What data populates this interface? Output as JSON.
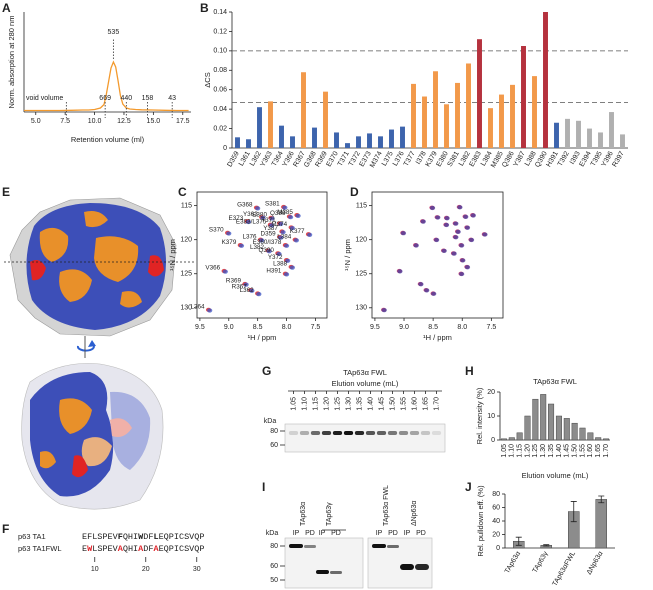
{
  "panel_labels": [
    "A",
    "B",
    "C",
    "D",
    "E",
    "F",
    "G",
    "H",
    "I",
    "J"
  ],
  "chart_data": [
    {
      "type": "line",
      "xlabel": "Retention volume (ml)",
      "ylabel": "Norm. absorption at 280 nm",
      "color": "#f39a2e",
      "x": [
        4,
        5,
        6,
        7,
        8,
        9,
        9.5,
        10,
        10.5,
        10.8,
        11.0,
        11.2,
        11.4,
        11.6,
        11.8,
        12.0,
        12.2,
        12.4,
        12.7,
        13,
        13.5,
        14,
        15,
        16,
        17,
        18
      ],
      "values": [
        0.03,
        0.03,
        0.03,
        0.03,
        0.035,
        0.04,
        0.04,
        0.05,
        0.08,
        0.15,
        0.35,
        0.62,
        0.88,
        1.0,
        0.9,
        0.62,
        0.33,
        0.16,
        0.08,
        0.06,
        0.05,
        0.045,
        0.04,
        0.035,
        0.03,
        0.03
      ],
      "xlim": [
        4,
        18.2
      ],
      "ylim": [
        0,
        2
      ],
      "xticks": [
        {
          "value": 5,
          "label": "5.0"
        },
        7.5,
        {
          "value": 10,
          "label": "10.0"
        },
        12.5,
        {
          "value": 15,
          "label": "15.0"
        },
        17.5
      ],
      "peak": {
        "label": "535",
        "x": 11.6
      },
      "markers": [
        {
          "label": "void volume",
          "x": 7.6
        },
        {
          "label": "669",
          "x": 10.9
        },
        {
          "label": "440",
          "x": 12.7
        },
        {
          "label": "158",
          "x": 14.5
        },
        {
          "label": "43",
          "x": 16.6
        }
      ]
    },
    {
      "type": "bar",
      "ylabel": "ΔCS",
      "categories": [
        "D359",
        "L361",
        "L362",
        "Y363",
        "T364",
        "Y366",
        "R367",
        "G368",
        "R369",
        "E370",
        "T371",
        "T372",
        "E373",
        "M374",
        "L375",
        "L376",
        "T377",
        "I378",
        "K379",
        "E380",
        "S381",
        "L382",
        "E383",
        "L384",
        "M385",
        "Q386",
        "Y387",
        "L388",
        "Q390",
        "H391",
        "T392",
        "I393",
        "E394",
        "T395",
        "Y396",
        "R397"
      ],
      "values": [
        0.011,
        0.009,
        0.042,
        0.048,
        0.023,
        0.012,
        0.078,
        0.021,
        0.058,
        0.016,
        0.005,
        0.012,
        0.015,
        0.012,
        0.019,
        0.022,
        0.066,
        0.053,
        0.079,
        0.045,
        0.067,
        0.087,
        0.112,
        0.041,
        0.055,
        0.065,
        0.105,
        0.074,
        0.14,
        0.026,
        0.03,
        0.028,
        0.02,
        0.016,
        0.037,
        0.014
      ],
      "colors": [
        "#3d64ad",
        "#3d64ad",
        "#3d64ad",
        "#f2994a",
        "#3d64ad",
        "#3d64ad",
        "#f2994a",
        "#3d64ad",
        "#f2994a",
        "#3d64ad",
        "#3d64ad",
        "#3d64ad",
        "#3d64ad",
        "#3d64ad",
        "#3d64ad",
        "#3d64ad",
        "#f2994a",
        "#f2994a",
        "#f2994a",
        "#f2994a",
        "#f2994a",
        "#f2994a",
        "#b5323e",
        "#f2994a",
        "#f2994a",
        "#f2994a",
        "#b5323e",
        "#f2994a",
        "#b5323e",
        "#3d64ad",
        "#b0b0b0",
        "#b0b0b0",
        "#b0b0b0",
        "#b0b0b0",
        "#b0b0b0",
        "#b0b0b0"
      ],
      "ylim": [
        0,
        0.14
      ],
      "yticks": [
        0,
        0.02,
        0.04,
        0.06,
        0.08,
        {
          "value": 0.1,
          "label": "0.10"
        },
        0.12,
        0.14
      ],
      "reference_lines": [
        0.1,
        0.047
      ]
    },
    {
      "type": "scatter",
      "xlabel": "¹H  /  ppm",
      "ylabel": "¹⁵N  /  ppm",
      "xlim": [
        9.55,
        7.3
      ],
      "ylim": [
        131.5,
        113
      ],
      "xticks": [
        9.5,
        {
          "value": 9,
          "label": "9.0"
        },
        8.5,
        {
          "value": 8,
          "label": "8.0"
        },
        7.5
      ],
      "yticks": [
        115,
        120,
        125,
        130
      ],
      "series": [
        {
          "color": "#e0363a",
          "x": [
            8.52,
            8.05,
            8.43,
            8.27,
            7.95,
            7.82,
            8.68,
            8.12,
            8.28,
            7.92,
            8.08,
            9.02,
            7.62,
            8.12,
            8.45,
            7.85,
            8.8,
            8.02,
            8.32,
            8.15,
            8.0,
            7.92,
            8.02,
            9.08,
            8.72,
            8.62,
            8.5,
            9.35
          ],
          "y": [
            115.3,
            115.2,
            116.7,
            116.8,
            116.6,
            116.4,
            117.3,
            117.6,
            117.8,
            118.2,
            118.8,
            119.0,
            119.2,
            119.6,
            120.0,
            120.0,
            120.8,
            120.8,
            121.6,
            122.0,
            123.0,
            124.0,
            125.0,
            124.6,
            126.5,
            127.4,
            127.9,
            130.3
          ]
        },
        {
          "color": "#3b55c4",
          "x": [
            8.5,
            8.03,
            8.41,
            8.25,
            7.93,
            7.8,
            8.66,
            8.1,
            8.26,
            7.9,
            8.06,
            9.0,
            7.6,
            8.1,
            8.43,
            7.83,
            8.78,
            8.0,
            8.3,
            8.13,
            7.98,
            7.9,
            8.0,
            9.06,
            8.7,
            8.6,
            8.48,
            9.33
          ],
          "y": [
            115.4,
            115.3,
            116.8,
            116.9,
            116.7,
            116.5,
            117.4,
            117.7,
            117.9,
            118.3,
            118.9,
            119.1,
            119.3,
            119.7,
            120.1,
            120.1,
            120.9,
            120.9,
            121.7,
            122.1,
            123.1,
            124.1,
            125.1,
            124.7,
            126.6,
            127.5,
            128.0,
            130.4
          ]
        }
      ],
      "point_labels": [
        "G368",
        "S381",
        "Y363",
        "E380",
        "Q386",
        "M385",
        "E373",
        "T371",
        "E383/L375",
        "M374",
        "Y387",
        "S370",
        "K377",
        "D359",
        "L376",
        "L384",
        "K379",
        "E360/I378",
        "L382",
        "Q390",
        "Y372",
        "L388",
        "H391",
        "V366",
        "R369",
        "R367",
        "L362",
        "L364"
      ]
    },
    {
      "type": "scatter",
      "xlabel": "¹H  /  ppm",
      "ylabel": "¹⁵N  /  ppm",
      "xlim": [
        9.55,
        7.3
      ],
      "ylim": [
        131.5,
        113
      ],
      "xticks": [
        9.5,
        {
          "value": 9,
          "label": "9.0"
        },
        8.5,
        {
          "value": 8,
          "label": "8.0"
        },
        7.5
      ],
      "yticks": [
        115,
        120,
        125,
        130
      ],
      "series": [
        {
          "color": "#c23b6e",
          "x": [
            8.52,
            8.05,
            8.43,
            8.27,
            7.95,
            7.82,
            8.68,
            8.12,
            8.28,
            7.92,
            8.08,
            9.02,
            7.62,
            8.12,
            8.45,
            7.85,
            8.8,
            8.02,
            8.32,
            8.15,
            8.0,
            7.92,
            8.02,
            9.08,
            8.72,
            8.62,
            8.5,
            9.35
          ],
          "y": [
            115.3,
            115.2,
            116.7,
            116.8,
            116.6,
            116.4,
            117.3,
            117.6,
            117.8,
            118.2,
            118.8,
            119.0,
            119.2,
            119.6,
            120.0,
            120.0,
            120.8,
            120.8,
            121.6,
            122.0,
            123.0,
            124.0,
            125.0,
            124.6,
            126.5,
            127.4,
            127.9,
            130.3
          ]
        },
        {
          "color": "#4a3f9c",
          "x": [
            8.51,
            8.04,
            8.42,
            8.26,
            7.94,
            7.81,
            8.67,
            8.11,
            8.27,
            7.91,
            8.07,
            9.01,
            7.61,
            8.11,
            8.44,
            7.84,
            8.79,
            8.01,
            8.31,
            8.14,
            7.99,
            7.91,
            8.01,
            9.07,
            8.71,
            8.61,
            8.49,
            9.34
          ],
          "y": [
            115.35,
            115.25,
            116.75,
            116.85,
            116.65,
            116.45,
            117.35,
            117.65,
            117.85,
            118.25,
            118.85,
            119.05,
            119.25,
            119.65,
            120.05,
            120.05,
            120.85,
            120.85,
            121.65,
            122.05,
            123.05,
            124.05,
            125.05,
            124.65,
            126.55,
            127.45,
            127.95,
            130.35
          ]
        }
      ]
    },
    {
      "type": "bar",
      "title": "TAp63α FWL",
      "xlabel": "Elution volume (mL)",
      "ylabel": "Rel. intensity (%)",
      "color": "#8c8c8c",
      "categories": [
        "1.05",
        "1.10",
        "1.15",
        "1.20",
        "1.25",
        "1.30",
        "1.35",
        "1.40",
        "1.45",
        "1.50",
        "1.55",
        "1.60",
        "1.65",
        "1.70"
      ],
      "values": [
        0.5,
        1,
        3,
        10,
        17,
        19,
        15,
        10,
        9,
        7,
        5,
        3,
        1,
        0.5
      ],
      "ylim": [
        0,
        20
      ],
      "yticks": [
        0,
        10,
        20
      ]
    },
    {
      "type": "bar",
      "ylabel": "Rel. pulldown eff. (%)",
      "color": "#8c8c8c",
      "categories": [
        "TAp63α",
        "TAp63γ",
        "TAp63αFWL",
        "ΔNp63α"
      ],
      "values": [
        10,
        4,
        54,
        72
      ],
      "errors": [
        6,
        1,
        15,
        5
      ],
      "ylim": [
        0,
        80
      ],
      "yticks": [
        0,
        20,
        40,
        60,
        80
      ]
    }
  ],
  "gel_g": {
    "title": "TAp63α FWL",
    "subtitle": "Elution volume (mL)",
    "kda_label": "kDa",
    "kda_markers": [
      80,
      60
    ],
    "lanes": [
      "1.05",
      "1.10",
      "1.15",
      "1.20",
      "1.25",
      "1.30",
      "1.35",
      "1.40",
      "1.45",
      "1.50",
      "1.55",
      "1.60",
      "1.65",
      "1.70"
    ],
    "band_intensity": [
      0.15,
      0.3,
      0.6,
      0.8,
      0.95,
      1,
      0.9,
      0.7,
      0.65,
      0.55,
      0.45,
      0.35,
      0.2,
      0.1
    ]
  },
  "gel_i": {
    "kda_label": "kDa",
    "kda_markers": [
      80,
      60,
      50
    ],
    "groups": [
      {
        "name": "TAp63α",
        "lanes": [
          "IP",
          "PD"
        ]
      },
      {
        "name": "TAp63γ",
        "lanes": [
          "IP",
          "PD"
        ]
      },
      {
        "name": "TAp63α FWL",
        "lanes": [
          "IP",
          "PD"
        ]
      },
      {
        "name": "ΔNp63α",
        "lanes": [
          "IP",
          "PD"
        ]
      }
    ]
  },
  "sequence": {
    "rows": [
      {
        "name": "p63 TA1",
        "segments": [
          {
            "text": "EFLSPEV"
          },
          {
            "text": "F",
            "bold": true
          },
          {
            "text": "QHI"
          },
          {
            "text": "W",
            "bold": true
          },
          {
            "text": "DF"
          },
          {
            "text": "L",
            "bold": true
          },
          {
            "text": "EQPICSVQP"
          }
        ]
      },
      {
        "name": "p63 TA1FWL",
        "segments": [
          {
            "text": "E"
          },
          {
            "text": "W",
            "mutated": true
          },
          {
            "text": "LSPEV"
          },
          {
            "text": "A",
            "mutated": true
          },
          {
            "text": "QHI"
          },
          {
            "text": "A",
            "mutated": true
          },
          {
            "text": "DF"
          },
          {
            "text": "A",
            "mutated": true
          },
          {
            "text": "EQPICSVQP"
          }
        ]
      }
    ],
    "ticks": [
      10,
      20,
      30
    ]
  }
}
